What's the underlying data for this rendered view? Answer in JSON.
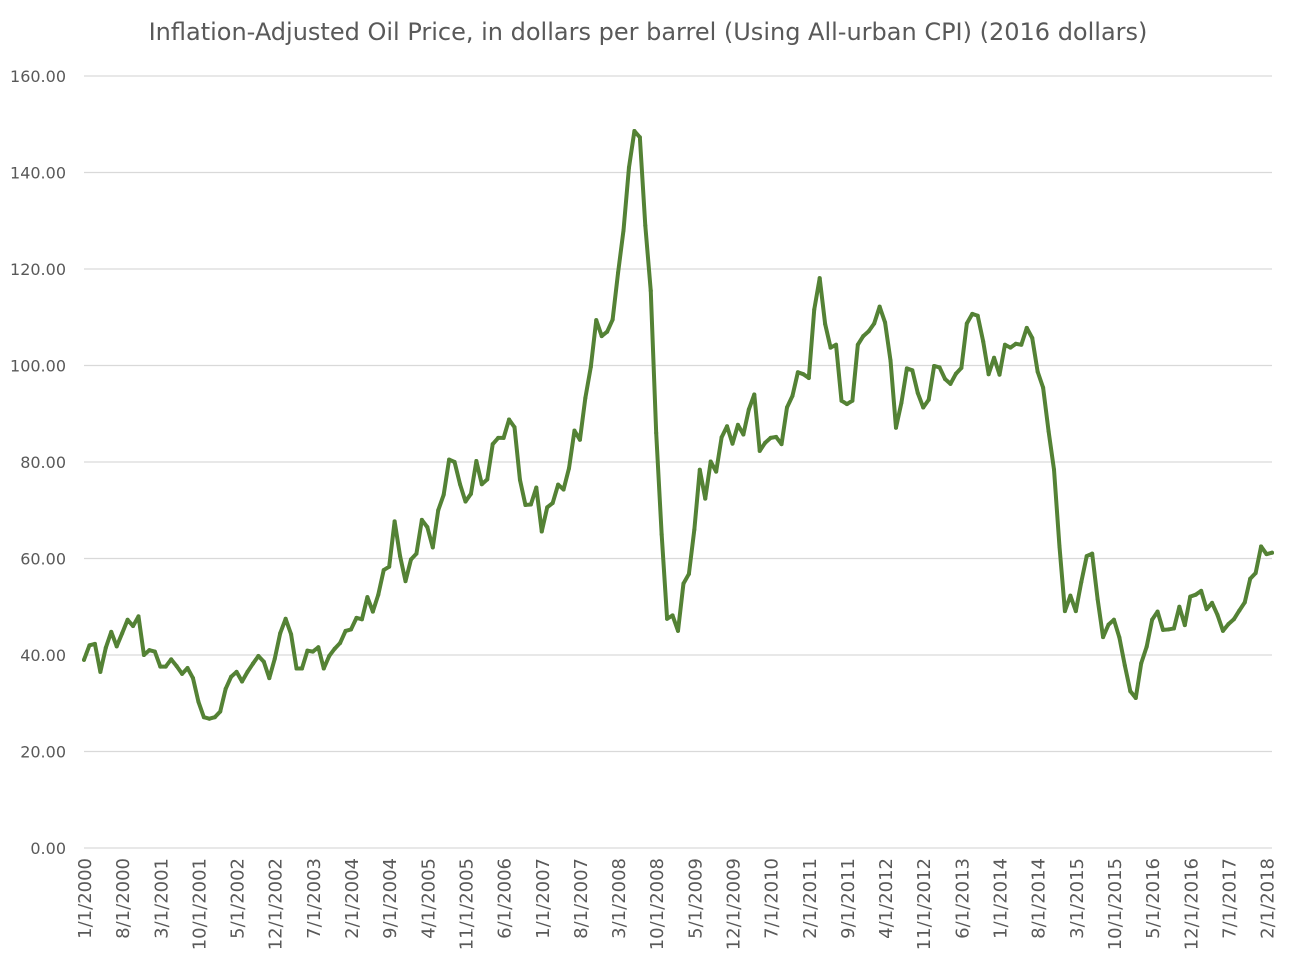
{
  "chart_data": {
    "type": "line",
    "title": "Inflation-Adjusted Oil Price, in dollars per barrel (Using All-urban CPI) (2016 dollars)",
    "xlabel": "",
    "ylabel": "",
    "ylim": [
      0,
      160
    ],
    "y_ticks": [
      "0.00",
      "20.00",
      "40.00",
      "60.00",
      "80.00",
      "100.00",
      "120.00",
      "140.00",
      "160.00"
    ],
    "x_tick_labels": [
      "1/1/2000",
      "8/1/2000",
      "3/1/2001",
      "10/1/2001",
      "5/1/2002",
      "12/1/2002",
      "7/1/2003",
      "2/1/2004",
      "9/1/2004",
      "4/1/2005",
      "11/1/2005",
      "6/1/2006",
      "1/1/2007",
      "8/1/2007",
      "3/1/2008",
      "10/1/2008",
      "5/1/2009",
      "12/1/2009",
      "7/1/2010",
      "2/1/2011",
      "9/1/2011",
      "4/1/2012",
      "11/1/2012",
      "6/1/2013",
      "1/1/2014",
      "8/1/2014",
      "3/1/2015",
      "10/1/2015",
      "5/1/2016",
      "12/1/2016",
      "7/1/2017",
      "2/1/2018"
    ],
    "grid": true,
    "legend": "none",
    "color": "#548235",
    "series": [
      {
        "start": "1/1/2000",
        "frequency": "monthly",
        "values": [
          39,
          42,
          42.3,
          36.5,
          41.5,
          44.8,
          41.8,
          44.5,
          47.3,
          46,
          48,
          40,
          41,
          40.7,
          37.6,
          37.6,
          39.1,
          37.7,
          36.1,
          37.3,
          35.2,
          30.3,
          27.1,
          26.8,
          27.1,
          28.3,
          33,
          35.5,
          36.5,
          34.5,
          36.5,
          38.2,
          39.8,
          38.6,
          35.2,
          39.2,
          44.5,
          47.5,
          44.3,
          37.2,
          37.2,
          40.9,
          40.7,
          41.6,
          37.2,
          39.8,
          41.3,
          42.5,
          45,
          45.3,
          47.7,
          47.4,
          52,
          49,
          52.5,
          57.6,
          58.3,
          67.7,
          60.5,
          55.3,
          59.8,
          61,
          68,
          66.5,
          62.3,
          70,
          73.2,
          80.5,
          80,
          75.4,
          71.8,
          73.4,
          80.2,
          75.4,
          76.4,
          83.7,
          85,
          85,
          88.8,
          87.2,
          76.3,
          71.1,
          71.2,
          74.7,
          65.6,
          70.6,
          71.5,
          75.3,
          74.3,
          78.7,
          86.5,
          84.6,
          93.3,
          99.7,
          109.4,
          106.1,
          107,
          109.5,
          119.2,
          128,
          141,
          148.6,
          147.3,
          129,
          115.5,
          86,
          65,
          47.5,
          48.2,
          45,
          54.8,
          56.8,
          66,
          78.4,
          72.4,
          80.1,
          78,
          85.1,
          87.4,
          83.8,
          87.7,
          85.7,
          90.9,
          94,
          82.3,
          84,
          85,
          85.2,
          83.7,
          91.3,
          93.7,
          98.6,
          98.2,
          97.4,
          111.6,
          118.1,
          108.6,
          103.7,
          104.3,
          92.7,
          92,
          92.7,
          104.3,
          106.1,
          107.1,
          108.7,
          112.2,
          108.9,
          101,
          87.1,
          92.3,
          99.4,
          99,
          94.3,
          91.3,
          92.9,
          99.9,
          99.6,
          97.2,
          96.2,
          98.3,
          99.5,
          108.7,
          110.7,
          110.3,
          105,
          98.2,
          101.6,
          98.1,
          104.3,
          103.7,
          104.5,
          104.3,
          107.8,
          105.7,
          98.7,
          95.4,
          86.4,
          78.4,
          62.5,
          49.1,
          52.3,
          49.1,
          55.1,
          60.5,
          61,
          51.6,
          43.7,
          46.3,
          47.3,
          43.6,
          37.8,
          32.5,
          31.1,
          38.3,
          41.7,
          47.3,
          49,
          45.2,
          45.3,
          45.5,
          50,
          46.2,
          52.1,
          52.5,
          53.3,
          49.5,
          50.8,
          48.3,
          45,
          46.4,
          47.4,
          49.2,
          50.9,
          55.8,
          57,
          62.5,
          60.9,
          61.2
        ]
      }
    ]
  }
}
